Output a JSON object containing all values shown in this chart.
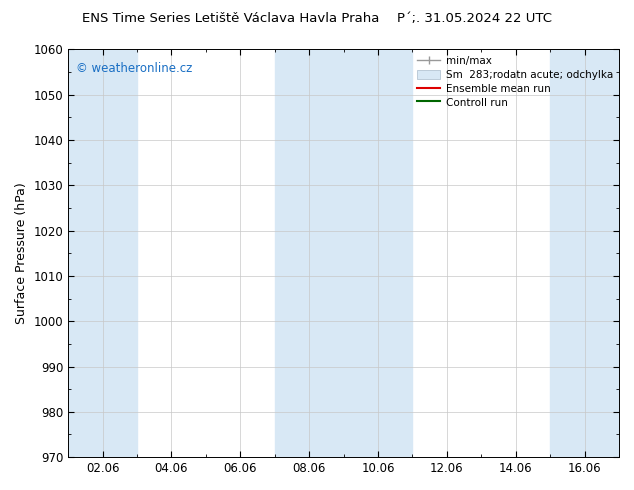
{
  "title_left": "ENS Time Series Letiště Václava Havla Praha",
  "title_right": "P´;. 31.05.2024 22 UTC",
  "ylabel": "Surface Pressure (hPa)",
  "ylim": [
    970,
    1060
  ],
  "ytick_interval": 10,
  "x_tick_labels": [
    "02.06",
    "04.06",
    "06.06",
    "08.06",
    "10.06",
    "12.06",
    "14.06",
    "16.06"
  ],
  "x_tick_positions": [
    2,
    4,
    6,
    8,
    10,
    12,
    14,
    16
  ],
  "x_min": 1,
  "x_max": 17,
  "background_color": "#ffffff",
  "plot_bg_color": "#ffffff",
  "watermark_text": "© weatheronline.cz",
  "watermark_color": "#1a6fc4",
  "shaded_bands": [
    {
      "x_start": 1,
      "x_end": 3
    },
    {
      "x_start": 7,
      "x_end": 9
    },
    {
      "x_start": 9,
      "x_end": 11
    },
    {
      "x_start": 15,
      "x_end": 17
    }
  ],
  "shaded_color": "#d8e8f5",
  "grid_color": "#c8c8c8",
  "tick_color": "#000000",
  "spine_color": "#000000",
  "title_fontsize": 9.5,
  "label_fontsize": 9,
  "tick_fontsize": 8.5,
  "legend_fontsize": 7.5
}
